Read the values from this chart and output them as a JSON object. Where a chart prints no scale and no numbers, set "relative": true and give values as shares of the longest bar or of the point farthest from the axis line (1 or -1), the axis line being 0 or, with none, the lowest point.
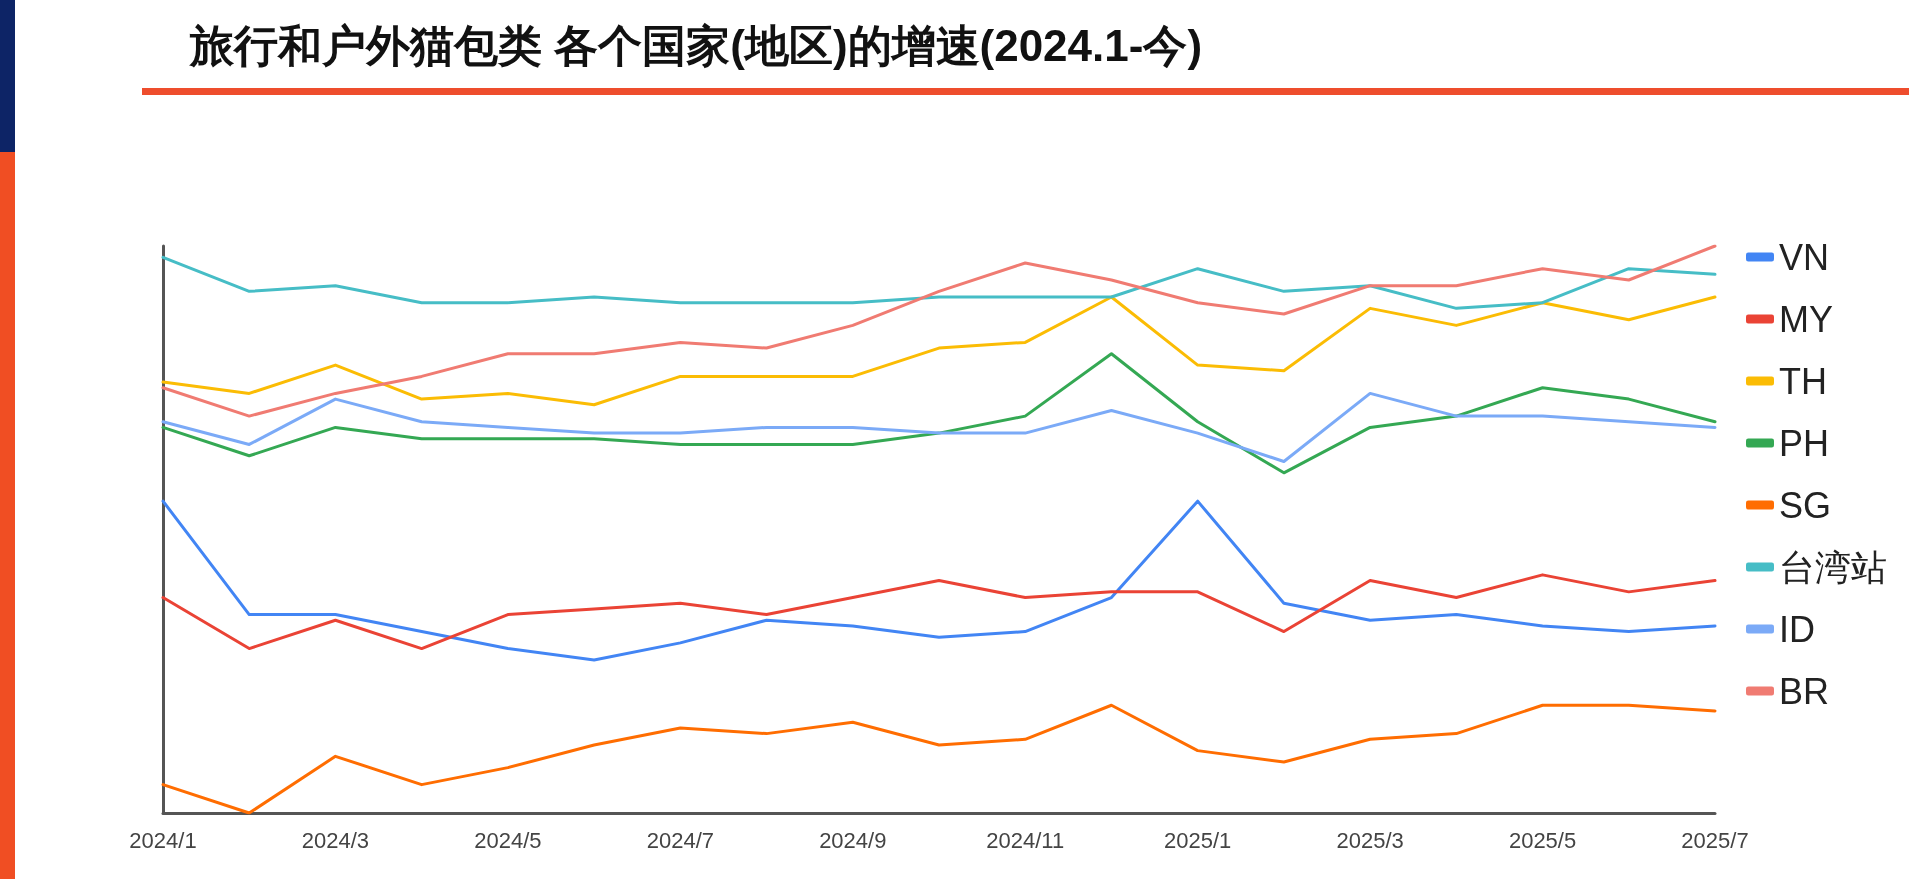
{
  "chart_data": {
    "type": "line",
    "title": "旅行和户外猫包类 各个国家(地区)的增速(2024.1-今)",
    "relative": true,
    "legend": "right",
    "categories": [
      "2024/1",
      null,
      "2024/3",
      null,
      "2024/5",
      null,
      "2024/7",
      null,
      "2024/9",
      null,
      "2024/11",
      null,
      "2025/1",
      null,
      "2025/3",
      null,
      "2025/5",
      null,
      "2025/7"
    ],
    "series": [
      {
        "name": "VN",
        "color": "#4285f4",
        "values": [
          0.55,
          0.35,
          0.35,
          0.32,
          0.29,
          0.27,
          0.3,
          0.34,
          0.33,
          0.31,
          0.32,
          0.38,
          0.55,
          0.37,
          0.34,
          0.35,
          0.33,
          0.32,
          0.33
        ]
      },
      {
        "name": "MY",
        "color": "#ea4335",
        "values": [
          0.38,
          0.29,
          0.34,
          0.29,
          0.35,
          0.36,
          0.37,
          0.35,
          0.38,
          0.41,
          0.38,
          0.39,
          0.39,
          0.32,
          0.41,
          0.38,
          0.42,
          0.39,
          0.41
        ]
      },
      {
        "name": "TH",
        "color": "#fbbc04",
        "values": [
          0.76,
          0.74,
          0.79,
          0.73,
          0.74,
          0.72,
          0.77,
          0.77,
          0.77,
          0.82,
          0.83,
          0.91,
          0.79,
          0.78,
          0.89,
          0.86,
          0.9,
          0.87,
          0.91
        ]
      },
      {
        "name": "PH",
        "color": "#34a853",
        "values": [
          0.68,
          0.63,
          0.68,
          0.66,
          0.66,
          0.66,
          0.65,
          0.65,
          0.65,
          0.67,
          0.7,
          0.81,
          0.69,
          0.6,
          0.68,
          0.7,
          0.75,
          0.73,
          0.69
        ]
      },
      {
        "name": "SG",
        "color": "#ff6d01",
        "values": [
          0.05,
          0,
          0.1,
          0.05,
          0.08,
          0.12,
          0.15,
          0.14,
          0.16,
          0.12,
          0.13,
          0.19,
          0.11,
          0.09,
          0.13,
          0.14,
          0.19,
          0.19,
          0.18
        ]
      },
      {
        "name": "台湾站",
        "color": "#46bdc6",
        "values": [
          0.98,
          0.92,
          0.93,
          0.9,
          0.9,
          0.91,
          0.9,
          0.9,
          0.9,
          0.91,
          0.91,
          0.91,
          0.96,
          0.92,
          0.93,
          0.89,
          0.9,
          0.96,
          0.95
        ]
      },
      {
        "name": "ID",
        "color": "#7baaf7",
        "values": [
          0.69,
          0.65,
          0.73,
          0.69,
          0.68,
          0.67,
          0.67,
          0.68,
          0.68,
          0.67,
          0.67,
          0.71,
          0.67,
          0.62,
          0.74,
          0.7,
          0.7,
          0.69,
          0.68
        ]
      },
      {
        "name": "BR",
        "color": "#f07b72",
        "values": [
          0.75,
          0.7,
          0.74,
          0.77,
          0.81,
          0.81,
          0.83,
          0.82,
          0.86,
          0.92,
          0.97,
          0.94,
          0.9,
          0.88,
          0.93,
          0.93,
          0.96,
          0.94,
          1
        ]
      }
    ]
  }
}
